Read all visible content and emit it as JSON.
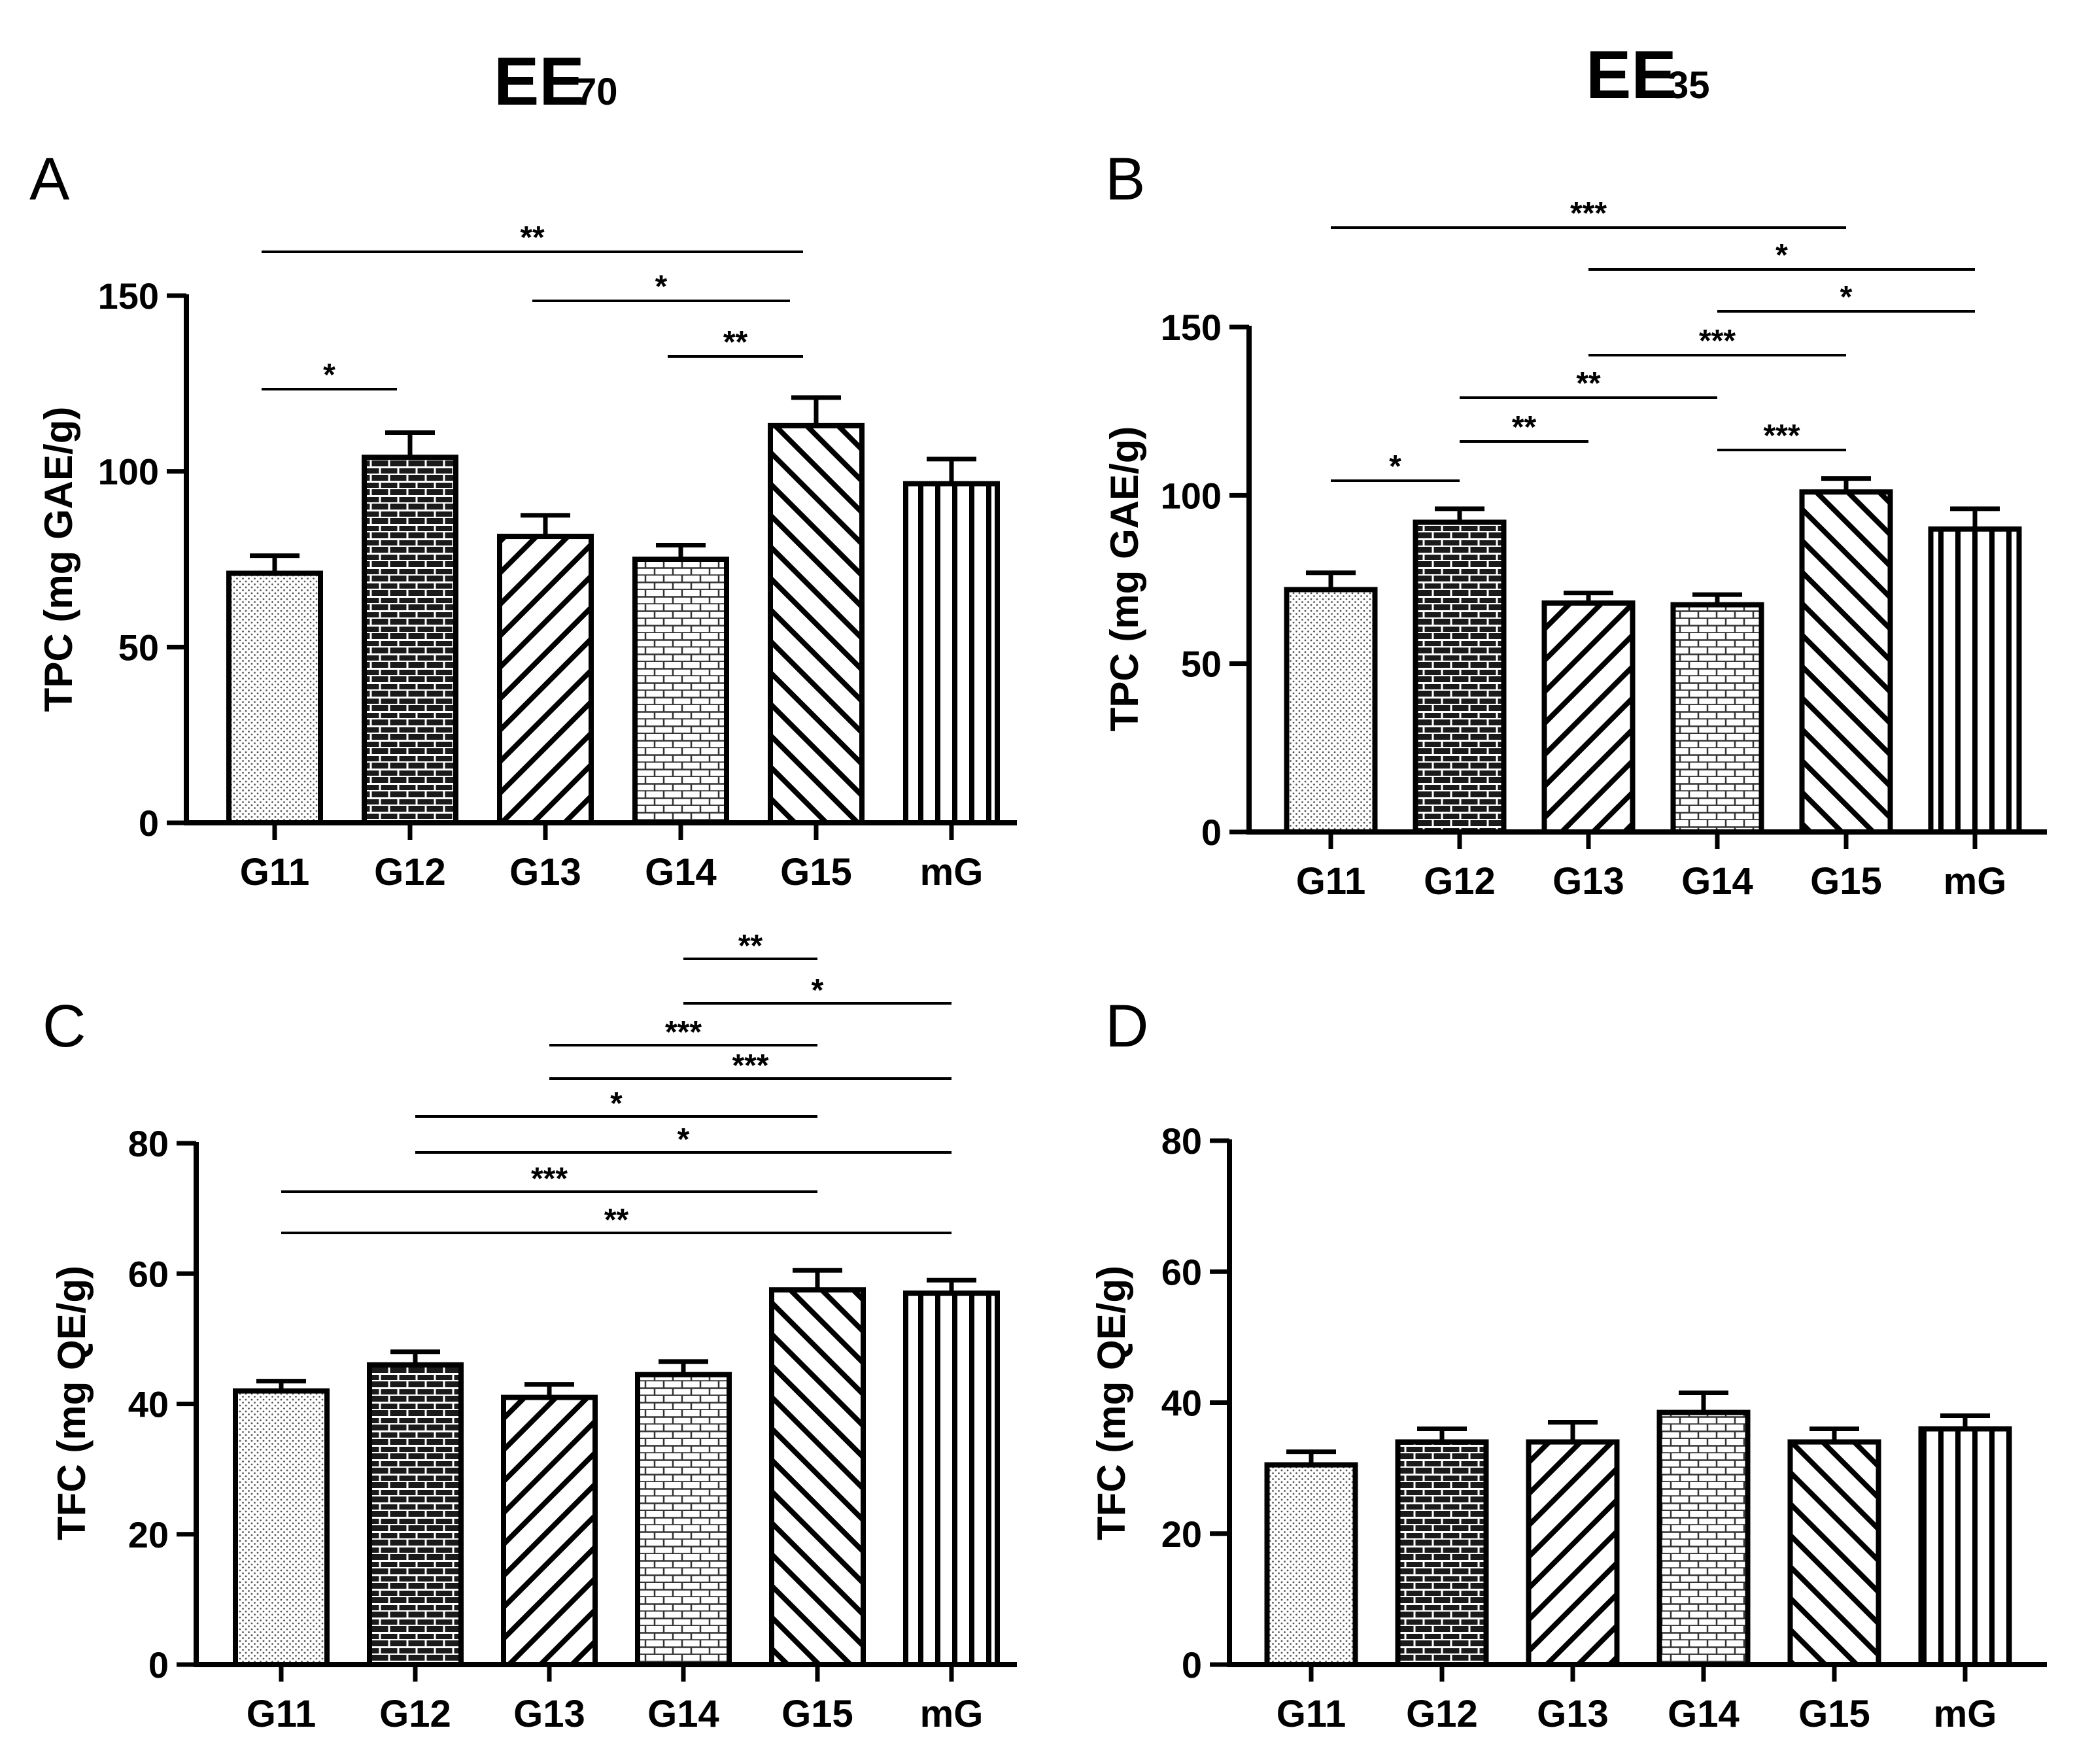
{
  "figure": {
    "column_titles": [
      {
        "main": "EE",
        "sub": "70"
      },
      {
        "main": "EE",
        "sub": "35"
      }
    ]
  },
  "chart_data": [
    {
      "panel": "A",
      "type": "bar",
      "categories": [
        "G11",
        "G12",
        "G13",
        "G14",
        "G15",
        "mG"
      ],
      "values": [
        71,
        104,
        81.5,
        75,
        113,
        96.5
      ],
      "errors": [
        5,
        7,
        6,
        4,
        8,
        7
      ],
      "patterns": [
        "dots",
        "brick-dark",
        "diag-back",
        "brick-light",
        "diag-fwd",
        "vertical"
      ],
      "ylabel": "TPC (mg GAE/g)",
      "ylim": [
        0,
        150
      ],
      "yticks": [
        0,
        50,
        100,
        150
      ],
      "significance": [
        {
          "from": "G11",
          "to": "G15",
          "label": "**"
        },
        {
          "from": "G13",
          "to": "G15",
          "label": "*"
        },
        {
          "from": "G14",
          "to": "G15",
          "label": "**"
        },
        {
          "from": "G11",
          "to": "G12",
          "label": "*"
        }
      ]
    },
    {
      "panel": "B",
      "type": "bar",
      "categories": [
        "G11",
        "G12",
        "G13",
        "G14",
        "G15",
        "mG"
      ],
      "values": [
        72,
        92,
        68,
        67.5,
        101,
        90
      ],
      "errors": [
        5,
        4,
        3,
        3,
        4,
        6
      ],
      "patterns": [
        "dots",
        "brick-dark",
        "diag-back",
        "brick-light",
        "diag-fwd",
        "vertical"
      ],
      "ylabel": "TPC (mg GAE/g)",
      "ylim": [
        0,
        150
      ],
      "yticks": [
        0,
        50,
        100,
        150
      ],
      "significance": [
        {
          "from": "G11",
          "to": "G15",
          "label": "***"
        },
        {
          "from": "G13",
          "to": "mG",
          "label": "*"
        },
        {
          "from": "G14",
          "to": "mG",
          "label": "*"
        },
        {
          "from": "G13",
          "to": "G15",
          "label": "***"
        },
        {
          "from": "G12",
          "to": "G14",
          "label": "**"
        },
        {
          "from": "G12",
          "to": "G13",
          "label": "**"
        },
        {
          "from": "G14",
          "to": "G15",
          "label": "***"
        },
        {
          "from": "G11",
          "to": "G12",
          "label": "*"
        }
      ]
    },
    {
      "panel": "C",
      "type": "bar",
      "categories": [
        "G11",
        "G12",
        "G13",
        "G14",
        "G15",
        "mG"
      ],
      "values": [
        42,
        46,
        41,
        44.5,
        57.5,
        57
      ],
      "errors": [
        1.5,
        2,
        2,
        2,
        3,
        2
      ],
      "patterns": [
        "dots",
        "brick-dark",
        "diag-back",
        "brick-light",
        "diag-fwd",
        "vertical"
      ],
      "ylabel": "TFC (mg QE/g)",
      "ylim": [
        0,
        80
      ],
      "yticks": [
        0,
        20,
        40,
        60,
        80
      ],
      "significance": [
        {
          "from": "G14",
          "to": "G15",
          "label": "**"
        },
        {
          "from": "G14",
          "to": "mG",
          "label": "*"
        },
        {
          "from": "G13",
          "to": "G15",
          "label": "***"
        },
        {
          "from": "G13",
          "to": "mG",
          "label": "***"
        },
        {
          "from": "G12",
          "to": "G15",
          "label": "*"
        },
        {
          "from": "G12",
          "to": "mG",
          "label": "*"
        },
        {
          "from": "G11",
          "to": "G15",
          "label": "***"
        },
        {
          "from": "G11",
          "to": "mG",
          "label": "**"
        }
      ]
    },
    {
      "panel": "D",
      "type": "bar",
      "categories": [
        "G11",
        "G12",
        "G13",
        "G14",
        "G15",
        "mG"
      ],
      "values": [
        30.5,
        34,
        34,
        38.5,
        34,
        36
      ],
      "errors": [
        2,
        2,
        3,
        3,
        2,
        2
      ],
      "patterns": [
        "dots",
        "brick-dark",
        "diag-back",
        "brick-light",
        "diag-fwd",
        "vertical"
      ],
      "ylabel": "TFC (mg QE/g)",
      "ylim": [
        0,
        80
      ],
      "yticks": [
        0,
        20,
        40,
        60,
        80
      ],
      "significance": []
    }
  ]
}
